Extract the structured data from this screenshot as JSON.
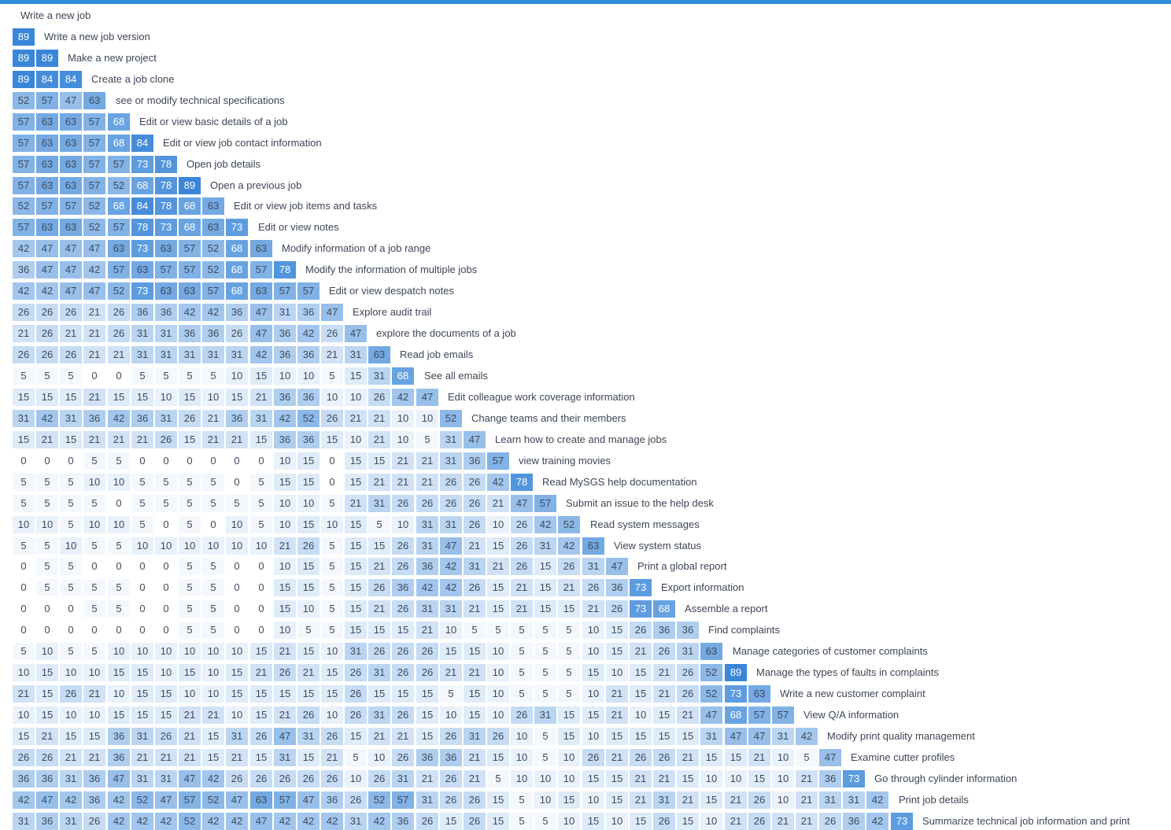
{
  "chart_data": {
    "type": "heatmap",
    "labels": [
      "Write a new job",
      "Write a new job version",
      "Make a new project",
      "Create a job clone",
      "see or modify technical specifications",
      "Edit or view basic details of a job",
      "Edit or view job contact information",
      "Open job details",
      "Open a previous job",
      "Edit or view job items and tasks",
      "Edit or view notes",
      "Modify information of a job range",
      "Modify the information of multiple jobs",
      "Edit or view despatch notes",
      "Explore audit trail",
      "explore the documents of a job",
      "Read job emails",
      "See all emails",
      "Edit colleague work coverage information",
      "Change teams and their members",
      "Learn how to create and manage jobs",
      "view training movies",
      "Read MySGS help documentation",
      "Submit an issue to the help desk",
      "Read system messages",
      "View system status",
      "Print a global report",
      "Export information",
      "Assemble a report",
      "Find complaints",
      "Manage categories of customer complaints",
      "Manage the types of faults in complaints",
      "Write a new customer complaint",
      "View Q/A information",
      "Modify print quality management",
      "Examine cutter profiles",
      "Go through cylinder information",
      "Print job details",
      "Summarize technical job information and print"
    ],
    "rows": [
      [],
      [
        89
      ],
      [
        89,
        89
      ],
      [
        89,
        84,
        84
      ],
      [
        52,
        57,
        47,
        63
      ],
      [
        57,
        63,
        63,
        57,
        68
      ],
      [
        57,
        63,
        63,
        57,
        68,
        84
      ],
      [
        57,
        63,
        63,
        57,
        57,
        73,
        78
      ],
      [
        57,
        63,
        63,
        57,
        52,
        68,
        78,
        89
      ],
      [
        52,
        57,
        57,
        52,
        68,
        84,
        78,
        68,
        63
      ],
      [
        57,
        63,
        63,
        52,
        57,
        78,
        73,
        68,
        63,
        73
      ],
      [
        42,
        47,
        47,
        47,
        63,
        73,
        63,
        57,
        52,
        68,
        63
      ],
      [
        36,
        47,
        47,
        42,
        57,
        63,
        57,
        57,
        52,
        68,
        57,
        78
      ],
      [
        42,
        42,
        47,
        47,
        52,
        73,
        63,
        63,
        57,
        68,
        63,
        57,
        57
      ],
      [
        26,
        26,
        26,
        21,
        26,
        36,
        36,
        42,
        42,
        36,
        47,
        31,
        36,
        47
      ],
      [
        21,
        26,
        21,
        21,
        26,
        31,
        31,
        36,
        36,
        26,
        47,
        36,
        42,
        26,
        47
      ],
      [
        26,
        26,
        26,
        21,
        21,
        31,
        31,
        31,
        31,
        31,
        42,
        36,
        36,
        21,
        31,
        63
      ],
      [
        5,
        5,
        5,
        0,
        0,
        5,
        5,
        5,
        5,
        10,
        15,
        10,
        10,
        5,
        15,
        31,
        68
      ],
      [
        15,
        15,
        15,
        21,
        15,
        15,
        10,
        15,
        10,
        15,
        21,
        36,
        36,
        10,
        10,
        26,
        42,
        47
      ],
      [
        31,
        42,
        31,
        36,
        42,
        36,
        31,
        26,
        21,
        36,
        31,
        42,
        52,
        26,
        21,
        21,
        10,
        10,
        52
      ],
      [
        15,
        21,
        15,
        21,
        21,
        21,
        26,
        15,
        21,
        21,
        15,
        36,
        36,
        15,
        10,
        21,
        10,
        5,
        31,
        47
      ],
      [
        0,
        0,
        0,
        5,
        5,
        0,
        0,
        0,
        0,
        0,
        0,
        10,
        15,
        0,
        15,
        15,
        21,
        21,
        31,
        36,
        57
      ],
      [
        5,
        5,
        5,
        10,
        10,
        5,
        5,
        5,
        5,
        0,
        5,
        15,
        15,
        0,
        15,
        21,
        21,
        21,
        26,
        26,
        42,
        78
      ],
      [
        5,
        5,
        5,
        5,
        0,
        5,
        5,
        5,
        5,
        5,
        5,
        10,
        10,
        5,
        21,
        31,
        26,
        26,
        26,
        26,
        21,
        47,
        57
      ],
      [
        10,
        10,
        5,
        10,
        10,
        5,
        0,
        5,
        0,
        10,
        5,
        10,
        15,
        10,
        15,
        5,
        10,
        31,
        31,
        26,
        10,
        26,
        42,
        52
      ],
      [
        5,
        5,
        10,
        5,
        5,
        10,
        10,
        10,
        10,
        10,
        10,
        21,
        26,
        5,
        15,
        15,
        26,
        31,
        47,
        21,
        15,
        26,
        31,
        42,
        63
      ],
      [
        0,
        5,
        5,
        0,
        0,
        0,
        0,
        5,
        5,
        0,
        0,
        10,
        15,
        5,
        15,
        21,
        26,
        36,
        42,
        31,
        21,
        26,
        15,
        26,
        31,
        47
      ],
      [
        0,
        5,
        5,
        5,
        5,
        0,
        0,
        5,
        5,
        0,
        0,
        15,
        15,
        5,
        15,
        26,
        36,
        42,
        42,
        26,
        15,
        21,
        15,
        21,
        26,
        36,
        73
      ],
      [
        0,
        0,
        0,
        5,
        5,
        0,
        0,
        5,
        5,
        0,
        0,
        15,
        10,
        5,
        15,
        21,
        26,
        31,
        31,
        21,
        15,
        21,
        15,
        15,
        21,
        26,
        73,
        68
      ],
      [
        0,
        0,
        0,
        0,
        0,
        0,
        0,
        5,
        5,
        0,
        0,
        10,
        5,
        5,
        15,
        15,
        15,
        21,
        10,
        5,
        5,
        5,
        5,
        5,
        10,
        15,
        26,
        36,
        36
      ],
      [
        5,
        10,
        5,
        5,
        10,
        10,
        10,
        10,
        10,
        10,
        15,
        21,
        15,
        10,
        31,
        26,
        26,
        26,
        15,
        15,
        10,
        5,
        5,
        5,
        10,
        15,
        21,
        26,
        31,
        63
      ],
      [
        10,
        15,
        10,
        10,
        15,
        15,
        10,
        15,
        10,
        15,
        21,
        26,
        21,
        15,
        26,
        31,
        26,
        26,
        21,
        21,
        10,
        5,
        5,
        5,
        15,
        10,
        15,
        21,
        26,
        52,
        89
      ],
      [
        21,
        15,
        26,
        21,
        10,
        15,
        15,
        10,
        10,
        15,
        15,
        15,
        15,
        15,
        26,
        15,
        15,
        15,
        5,
        15,
        10,
        5,
        5,
        5,
        10,
        21,
        15,
        21,
        26,
        52,
        73,
        63
      ],
      [
        10,
        15,
        10,
        10,
        15,
        15,
        15,
        21,
        21,
        10,
        15,
        21,
        26,
        10,
        26,
        31,
        26,
        15,
        10,
        15,
        10,
        26,
        31,
        15,
        15,
        21,
        10,
        15,
        21,
        47,
        68,
        57,
        57
      ],
      [
        15,
        21,
        15,
        15,
        36,
        31,
        26,
        21,
        15,
        31,
        26,
        47,
        31,
        26,
        15,
        21,
        21,
        15,
        26,
        31,
        26,
        10,
        5,
        15,
        10,
        15,
        15,
        15,
        15,
        31,
        47,
        47,
        31,
        42
      ],
      [
        26,
        26,
        21,
        21,
        36,
        21,
        21,
        21,
        15,
        21,
        15,
        31,
        15,
        21,
        5,
        10,
        26,
        36,
        36,
        21,
        15,
        10,
        5,
        10,
        26,
        21,
        26,
        26,
        21,
        15,
        15,
        21,
        10,
        5,
        47
      ],
      [
        36,
        36,
        31,
        36,
        47,
        31,
        31,
        47,
        42,
        26,
        26,
        26,
        26,
        26,
        10,
        26,
        31,
        21,
        26,
        21,
        5,
        10,
        10,
        10,
        15,
        15,
        21,
        21,
        15,
        10,
        10,
        15,
        10,
        21,
        36,
        73
      ],
      [
        42,
        47,
        42,
        36,
        42,
        52,
        47,
        57,
        52,
        47,
        63,
        57,
        47,
        36,
        26,
        52,
        57,
        31,
        26,
        26,
        15,
        5,
        10,
        15,
        10,
        15,
        21,
        31,
        21,
        15,
        21,
        26,
        10,
        21,
        31,
        31,
        42
      ],
      [
        31,
        36,
        31,
        26,
        42,
        42,
        42,
        52,
        42,
        42,
        47,
        42,
        42,
        42,
        31,
        42,
        36,
        26,
        15,
        26,
        15,
        5,
        5,
        10,
        15,
        10,
        15,
        26,
        15,
        10,
        21,
        26,
        21,
        21,
        26,
        36,
        42,
        73
      ]
    ],
    "colors": {
      "low": "#ffffff",
      "high": "#3a86d8",
      "dark_text": "#ffffff",
      "light_text": "#3f4a5c",
      "accent": "#2f8fd8"
    }
  }
}
